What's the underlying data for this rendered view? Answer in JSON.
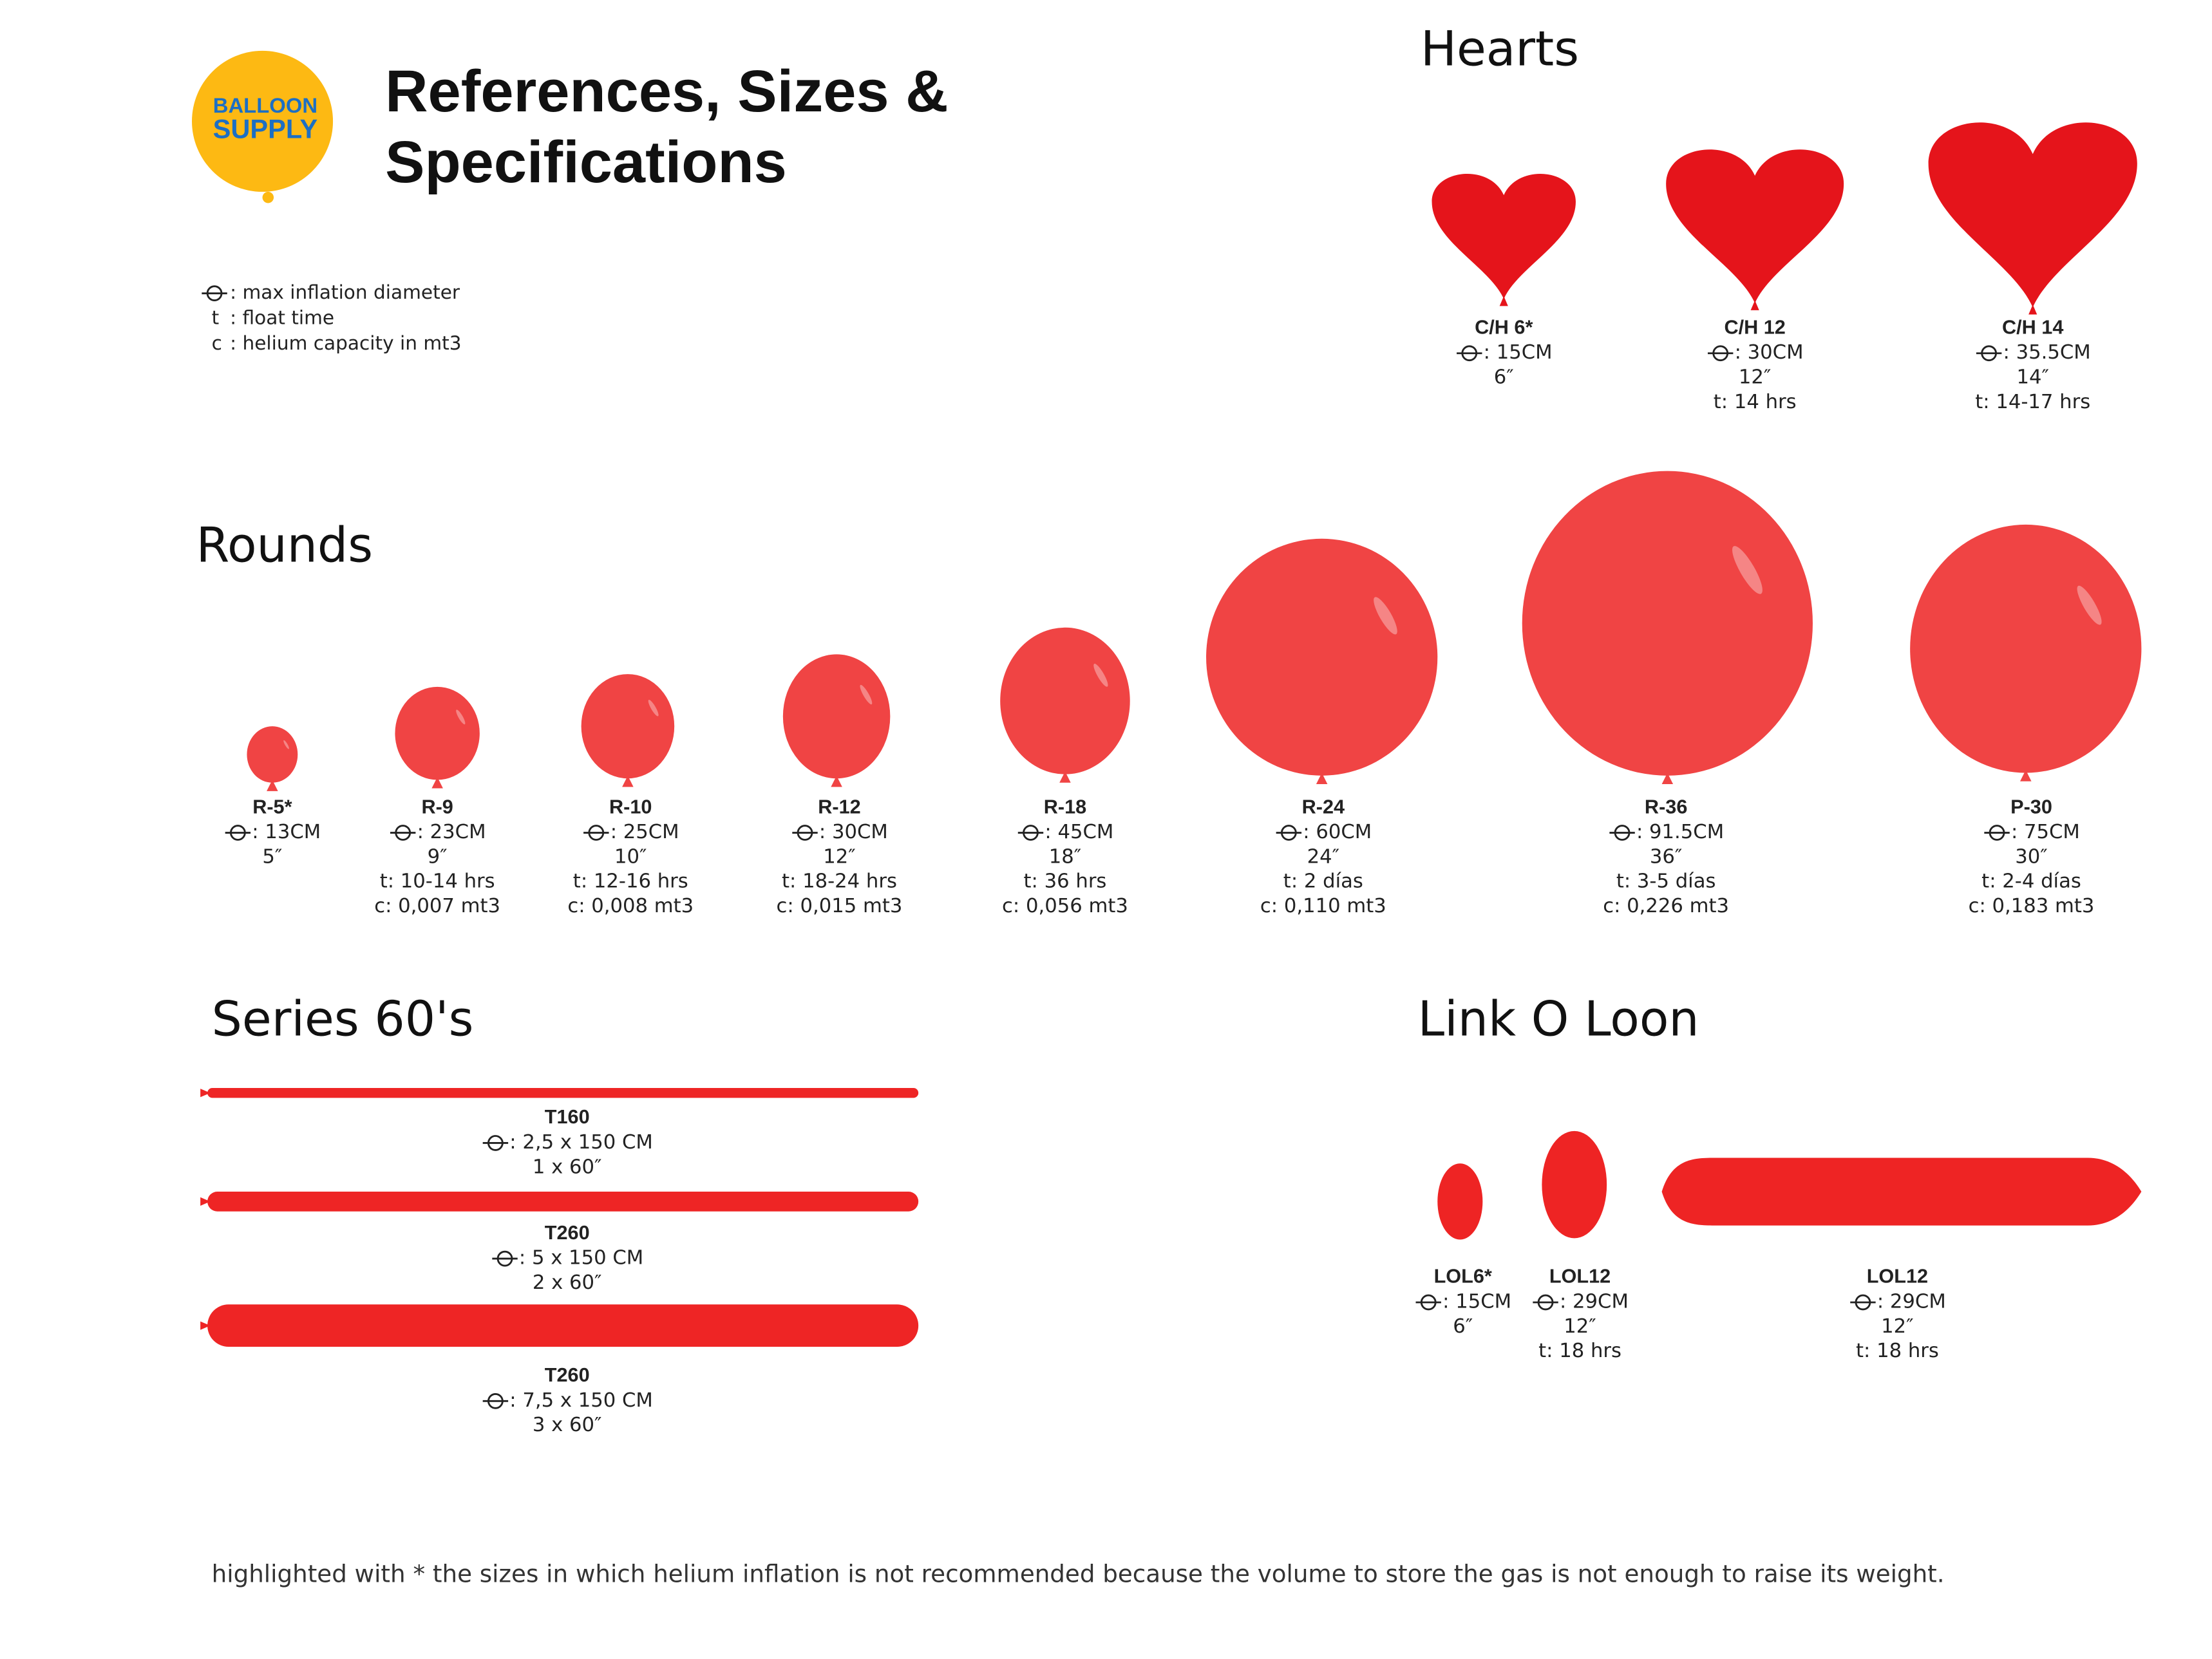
{
  "header": {
    "logo": [
      "BALLOON",
      "SUPPLY"
    ],
    "title": [
      "References, Sizes &",
      "Specifications"
    ]
  },
  "legend": [
    {
      "key": "",
      "text": ":  max inflation diameter"
    },
    {
      "key": "t",
      "text": ": float time"
    },
    {
      "key": "c",
      "text": ": helium capacity in mt3"
    }
  ],
  "hearts": {
    "title": "Hearts",
    "items": [
      {
        "name": "C/H 6*",
        "lines": [
          ": 15CM",
          "6″"
        ]
      },
      {
        "name": "C/H 12",
        "lines": [
          ": 30CM",
          "12″",
          "t: 14 hrs"
        ]
      },
      {
        "name": "C/H 14",
        "lines": [
          ": 35.5CM",
          "14″",
          "t: 14-17 hrs"
        ]
      }
    ]
  },
  "rounds": {
    "title": "Rounds",
    "items": [
      {
        "name": "R-5*",
        "lines": [
          ": 13CM",
          "5″"
        ]
      },
      {
        "name": "R-9",
        "lines": [
          ": 23CM",
          "9″",
          "t: 10-14 hrs",
          "c: 0,007 mt3"
        ]
      },
      {
        "name": "R-10",
        "lines": [
          ": 25CM",
          "10″",
          "t: 12-16 hrs",
          "c: 0,008 mt3"
        ]
      },
      {
        "name": "R-12",
        "lines": [
          ": 30CM",
          "12″",
          "t: 18-24 hrs",
          "c: 0,015 mt3"
        ]
      },
      {
        "name": "R-18",
        "lines": [
          ": 45CM",
          "18″",
          "t: 36 hrs",
          "c: 0,056 mt3"
        ]
      },
      {
        "name": "R-24",
        "lines": [
          ": 60CM",
          "24″",
          "t: 2 días",
          "c: 0,110 mt3"
        ]
      },
      {
        "name": "R-36",
        "lines": [
          ": 91.5CM",
          "36″",
          "t: 3-5 días",
          "c: 0,226 mt3"
        ]
      },
      {
        "name": "P-30",
        "lines": [
          ": 75CM",
          "30″",
          "t: 2-4 días",
          "c: 0,183 mt3"
        ]
      }
    ]
  },
  "series": {
    "title": "Series 60's",
    "items": [
      {
        "name": "T160",
        "lines": [
          ": 2,5 x 150 CM",
          "1 x 60″"
        ]
      },
      {
        "name": "T260",
        "lines": [
          ": 5 x 150 CM",
          "2 x 60″"
        ]
      },
      {
        "name": "T260",
        "lines": [
          ": 7,5 x 150 CM",
          "3 x 60″"
        ]
      }
    ]
  },
  "linkoloon": {
    "title": "Link O Loon",
    "items": [
      {
        "name": "LOL6*",
        "lines": [
          ": 15CM",
          "6″"
        ]
      },
      {
        "name": "LOL12",
        "lines": [
          ": 29CM",
          "12″",
          "t: 18 hrs"
        ]
      },
      {
        "name": "LOL12",
        "lines": [
          ": 29CM",
          "12″",
          "t: 18 hrs"
        ]
      }
    ]
  },
  "footnote": "highlighted with * the sizes in which helium inflation is not recommended because the volume to store the gas is not enough to raise its weight."
}
